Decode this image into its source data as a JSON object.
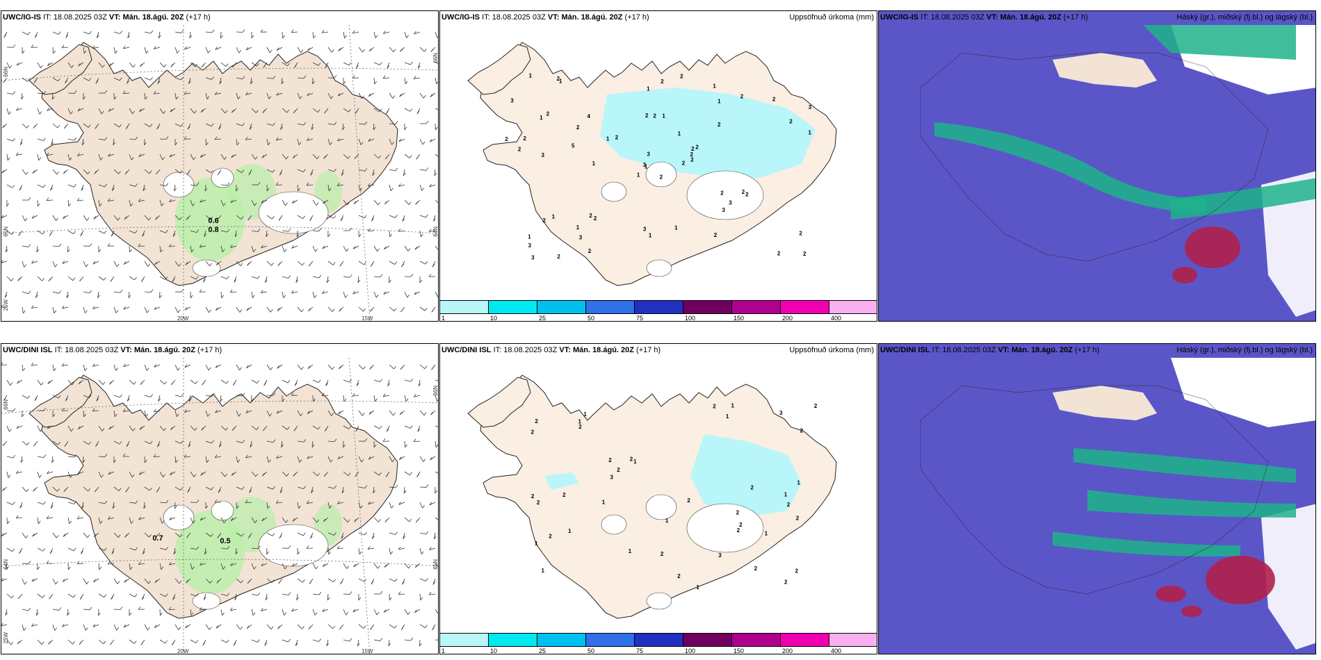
{
  "header": {
    "it_label": "IT:",
    "it_value": "18.08.2025 03Z",
    "vt_label": "VT:",
    "vt_value": "Mán. 18.ágú. 20Z",
    "lead": "(+17 h)"
  },
  "models": {
    "top": "UWC/IG-IS",
    "bottom": "UWC/DINI ISL"
  },
  "right_titles": {
    "precip": "Uppsöfnuð úrkoma (mm)",
    "cloud": "Háský (gr.), miðský (fj.bl.) og lágský (bl.)"
  },
  "axis_labels": {
    "lat66": "66N",
    "lat64": "64N",
    "lat65": "65N",
    "lon20": "20W",
    "lon15": "15W",
    "lon25": "25W"
  },
  "wind_values": {
    "top": [
      "0.6",
      "0.8"
    ],
    "bottom": [
      "0.7",
      "0.5"
    ]
  },
  "colorbar": {
    "labels": [
      "1",
      "10",
      "25",
      "50",
      "75",
      "100",
      "150",
      "200",
      "400"
    ],
    "colors": [
      "#b8f6fa",
      "#00e8f0",
      "#00c0f0",
      "#3070e8",
      "#2030c0",
      "#700060",
      "#b00090",
      "#f000b0",
      "#f8b0f0"
    ]
  },
  "precip_numbers": {
    "top": [
      "2",
      "1",
      "1",
      "1",
      "2",
      "2",
      "1",
      "1",
      "1",
      "2",
      "1",
      "2",
      "3",
      "3",
      "1",
      "2",
      "2",
      "2",
      "1",
      "1",
      "2",
      "3",
      "3",
      "2",
      "2",
      "2",
      "2",
      "1",
      "2",
      "2",
      "1",
      "3",
      "3",
      "3",
      "4",
      "2",
      "2",
      "2",
      "2",
      "2",
      "2",
      "1",
      "5",
      "3",
      "2",
      "2",
      "2",
      "3",
      "1",
      "2",
      "2",
      "2",
      "3",
      "3",
      "2",
      "1",
      "2",
      "1",
      "1",
      "2",
      "2",
      "1",
      "2",
      "2"
    ],
    "bottom": [
      "2",
      "2",
      "1",
      "1",
      "1",
      "2",
      "1",
      "1",
      "2",
      "1",
      "2",
      "2",
      "2",
      "2",
      "1",
      "1",
      "1",
      "2",
      "2",
      "1",
      "2",
      "3",
      "3",
      "2",
      "2",
      "1",
      "2",
      "2",
      "2",
      "2",
      "2",
      "3",
      "2",
      "1",
      "1",
      "1",
      "2",
      "2",
      "2",
      "2",
      "2",
      "1",
      "2"
    ]
  }
}
